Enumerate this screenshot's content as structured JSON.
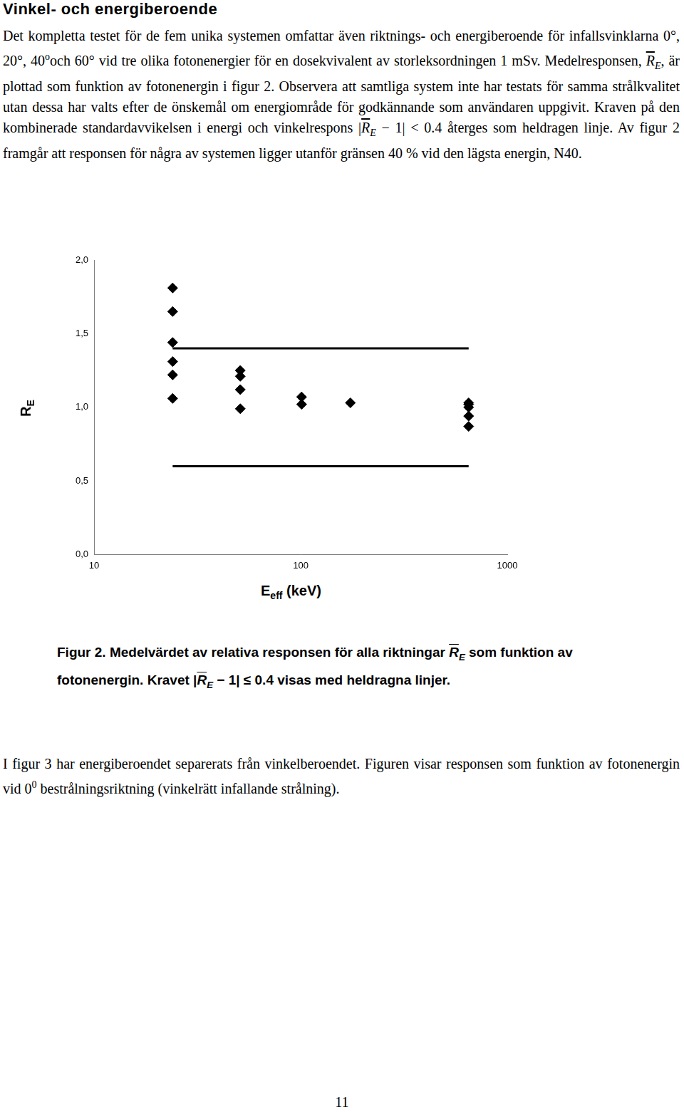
{
  "heading": "Vinkel- och energiberoende",
  "paragraph_1": [
    "Det kompletta testet för de fem unika systemen omfattar även riktnings- och energiberoende för infallsvinklarna 0°, 20°, 40",
    {
      "sup": "o"
    },
    "och 60° vid tre olika fotonenergier för en dosekvivalent av storleksordningen 1 mSv. Medelresponsen, ",
    {
      "bar": true,
      "base": "R",
      "sub": "E"
    },
    ", är plottad som funktion av fotonenergin i figur 2. Observera att samtliga system inte har testats för samma strålkvalitet utan dessa har valts efter de önskemål om energiområde för godkännande som användaren uppgivit. Kraven på den kombinerade standardavvikelsen i energi och vinkelrespons |",
    {
      "bar": true,
      "base": "R",
      "sub": "E"
    },
    " − 1| < 0.4 återges som heldragen linje. Av figur 2 framgår att responsen för några av systemen ligger utanför gränsen 40 % vid den lägsta energin, N40."
  ],
  "caption": [
    "Figur 2. Medelvärdet av relativa responsen för alla riktningar ",
    {
      "bar": true,
      "base": "R",
      "sub": "E"
    },
    " som funktion av fotonenergin. Kravet |",
    {
      "bar": true,
      "base": "R",
      "sub": "E"
    },
    " − 1| ≤ 0.4 visas med heldragna linjer."
  ],
  "paragraph_2": [
    "I figur 3 har energiberoendet separerats från vinkelberoendet. Figuren visar responsen som funktion av fotonenergin vid 0",
    {
      "sup": "0"
    },
    " bestrålningsriktning (vinkelrätt infallande strålning)."
  ],
  "page_number": "11",
  "chart_data": {
    "type": "scatter",
    "xlabel": {
      "base": "E",
      "sub": "eff",
      "after": " (keV)"
    },
    "ylabel": {
      "base": "R",
      "sub": "E"
    },
    "log": "x",
    "grid": false,
    "xlim": [
      10,
      1000
    ],
    "xticks": [
      10,
      100,
      1000
    ],
    "ylim": [
      0,
      2
    ],
    "yticks": [
      {
        "value": 0,
        "label": "0,0"
      },
      {
        "value": 0.5,
        "label": "0,5"
      },
      {
        "value": 1,
        "label": "1,0"
      },
      {
        "value": 1.5,
        "label": "1,5"
      },
      {
        "value": 2,
        "label": "2,0"
      }
    ],
    "series": [
      {
        "type": "scatter",
        "color": "#000000",
        "marker": "diamond",
        "x": [
          24,
          24,
          24,
          24,
          24,
          24,
          51,
          51,
          51,
          51,
          101,
          101,
          174,
          650,
          650,
          650,
          650,
          650
        ],
        "values": [
          1.81,
          1.65,
          1.44,
          1.31,
          1.22,
          1.06,
          1.25,
          1.21,
          1.12,
          0.99,
          1.07,
          1.02,
          1.03,
          1.03,
          1.02,
          1.0,
          0.94,
          0.87
        ]
      },
      {
        "type": "line",
        "color": "#000000",
        "line_style": "solid",
        "x": [
          24,
          650
        ],
        "values": [
          1.4,
          1.4
        ]
      },
      {
        "type": "line",
        "color": "#000000",
        "line_style": "solid",
        "x": [
          24,
          650
        ],
        "values": [
          0.6,
          0.6
        ]
      }
    ]
  }
}
